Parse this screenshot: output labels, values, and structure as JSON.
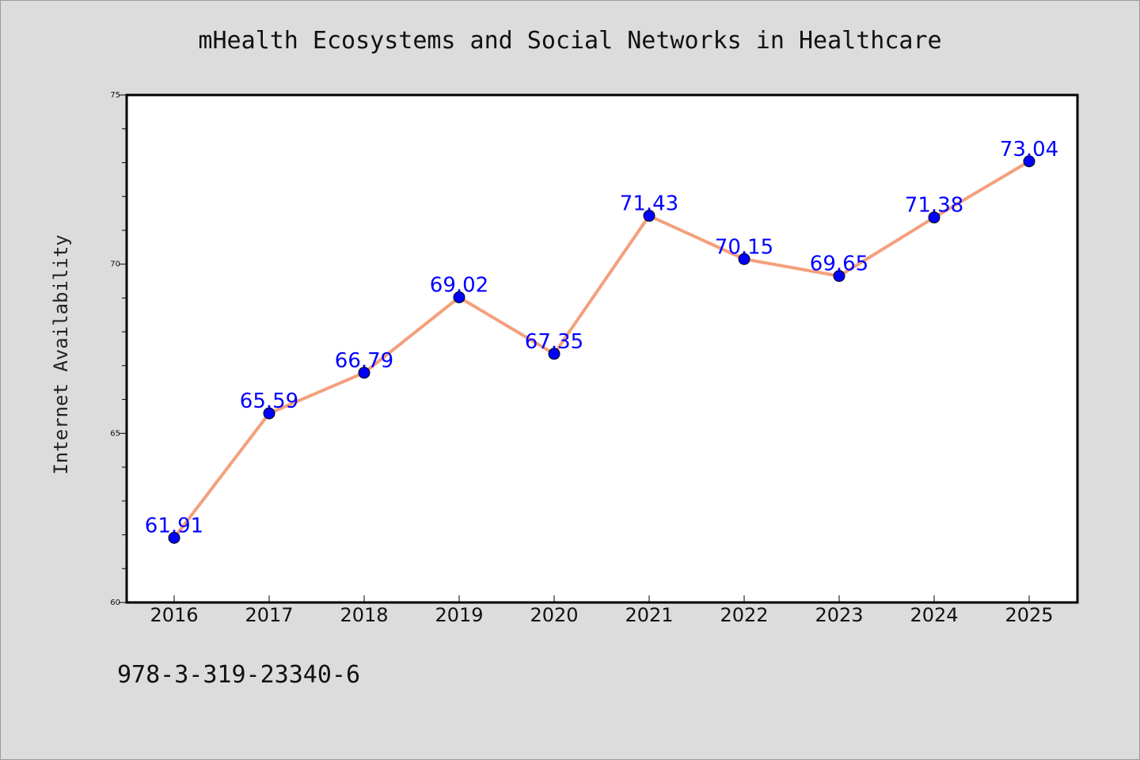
{
  "chart_data": {
    "type": "line",
    "title": "mHealth Ecosystems and Social Networks in Healthcare",
    "xlabel": "",
    "ylabel": "Internet Availability",
    "categories": [
      "2016",
      "2017",
      "2018",
      "2019",
      "2020",
      "2021",
      "2022",
      "2023",
      "2024",
      "2025"
    ],
    "series": [
      {
        "values": [
          61.91,
          65.59,
          66.79,
          69.02,
          67.35,
          71.43,
          70.15,
          69.65,
          71.38,
          73.04
        ],
        "data_labels": [
          "61.91",
          "65.59",
          "66.79",
          "69.02",
          "67.35",
          "71.43",
          "70.15",
          "69.65",
          "71.38",
          "73.04"
        ]
      }
    ],
    "ylim": [
      60,
      75
    ],
    "yticks": [
      "60",
      "65",
      "70",
      "75"
    ],
    "grid": false,
    "line_color": "#f4a07c",
    "marker_color": "#0000ff"
  },
  "footer": {
    "isbn": "978-3-319-23340-6"
  },
  "colors": {
    "background": "#dcdcdc",
    "plot_background": "#ffffff",
    "label_color": "#0000ff"
  }
}
